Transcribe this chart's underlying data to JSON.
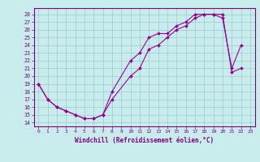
{
  "title": "",
  "xlabel": "Windchill (Refroidissement éolien,°C)",
  "bg_color": "#c8ecec",
  "line_color": "#990099",
  "grid_color": "#99cccc",
  "xlim": [
    -0.5,
    23.5
  ],
  "ylim": [
    13.5,
    28.8
  ],
  "xticks": [
    0,
    1,
    2,
    3,
    4,
    5,
    6,
    7,
    8,
    9,
    10,
    11,
    12,
    13,
    14,
    15,
    16,
    17,
    18,
    19,
    20,
    21,
    22,
    23
  ],
  "yticks": [
    14,
    15,
    16,
    17,
    18,
    19,
    20,
    21,
    22,
    23,
    24,
    25,
    26,
    27,
    28
  ],
  "curve1_x": [
    0,
    1,
    2,
    3,
    4,
    5,
    6,
    7,
    8,
    10,
    11,
    12,
    13,
    14,
    15,
    16,
    17,
    18,
    19,
    20,
    21,
    22
  ],
  "curve1_y": [
    19,
    17,
    16,
    15.5,
    15,
    14.5,
    14.5,
    15,
    18,
    22,
    23,
    25,
    25.5,
    25.5,
    26.5,
    27,
    28,
    28,
    28,
    27.5,
    21,
    24
  ],
  "curve2_x": [
    0,
    1,
    2,
    3,
    4,
    5,
    6,
    7,
    8,
    10,
    11,
    12,
    13,
    14,
    15,
    16,
    17,
    18,
    19,
    20,
    21,
    22
  ],
  "curve2_y": [
    19,
    17,
    16,
    15.5,
    15,
    14.5,
    14.5,
    15,
    17,
    20,
    21,
    23.5,
    24,
    25,
    26,
    26.5,
    27.5,
    28,
    28,
    28,
    20.5,
    21
  ]
}
